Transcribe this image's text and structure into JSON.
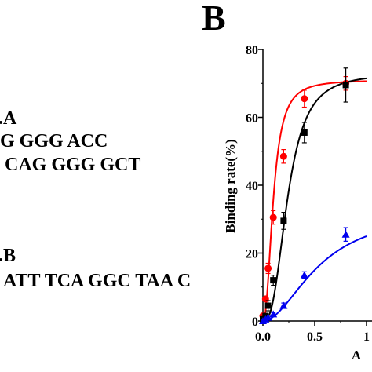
{
  "panel_a": {
    "lines": [
      ".A",
      "G GGG ACC",
      "CAG GGG GCT",
      ".B",
      "ATT TCA GGC TAA C"
    ]
  },
  "panel_b": {
    "label": "B"
  },
  "chart_data": {
    "type": "scatter",
    "title": "",
    "xlabel": "A",
    "ylabel": "Binding rate(%)",
    "xlim": [
      0,
      1.0
    ],
    "ylim": [
      0,
      80
    ],
    "xticks": [
      0.0,
      0.5,
      1.0
    ],
    "xtick_labels": [
      "0.0",
      "0.5",
      "1"
    ],
    "yticks": [
      0,
      20,
      40,
      60,
      80
    ],
    "ytick_labels": [
      "0",
      "20",
      "40",
      "60",
      "80"
    ],
    "grid": false,
    "legend": null,
    "series": [
      {
        "color": "#ff0000",
        "marker": "circle",
        "x": [
          0.0,
          0.025,
          0.05,
          0.1,
          0.2,
          0.4,
          0.8
        ],
        "y": [
          1.5,
          6.5,
          15.5,
          30.5,
          48.5,
          65.5,
          70.0
        ],
        "err": [
          0,
          0,
          1.5,
          2.0,
          2.0,
          2.5,
          2.0
        ],
        "curve": {
          "model": "hill",
          "top": 71,
          "k": 0.1,
          "n": 2.3
        }
      },
      {
        "color": "#000000",
        "marker": "square",
        "x": [
          0.0,
          0.025,
          0.05,
          0.1,
          0.2,
          0.4,
          0.8
        ],
        "y": [
          0.5,
          1.5,
          4.5,
          12.0,
          29.5,
          55.5,
          69.5
        ],
        "err": [
          0,
          0,
          1.5,
          1.5,
          2.5,
          3.0,
          5.0
        ],
        "curve": {
          "model": "hill",
          "top": 73,
          "k": 0.24,
          "n": 2.7
        }
      },
      {
        "color": "#0000ee",
        "marker": "triangle",
        "x": [
          0.0,
          0.025,
          0.05,
          0.1,
          0.2,
          0.4,
          0.8
        ],
        "y": [
          0.0,
          0.5,
          1.0,
          2.0,
          4.5,
          13.5,
          25.5
        ],
        "err": [
          0,
          0,
          0,
          0.5,
          0.8,
          1.0,
          2.0
        ],
        "curve": {
          "model": "hill",
          "top": 33,
          "k": 0.55,
          "n": 1.9
        }
      }
    ]
  }
}
